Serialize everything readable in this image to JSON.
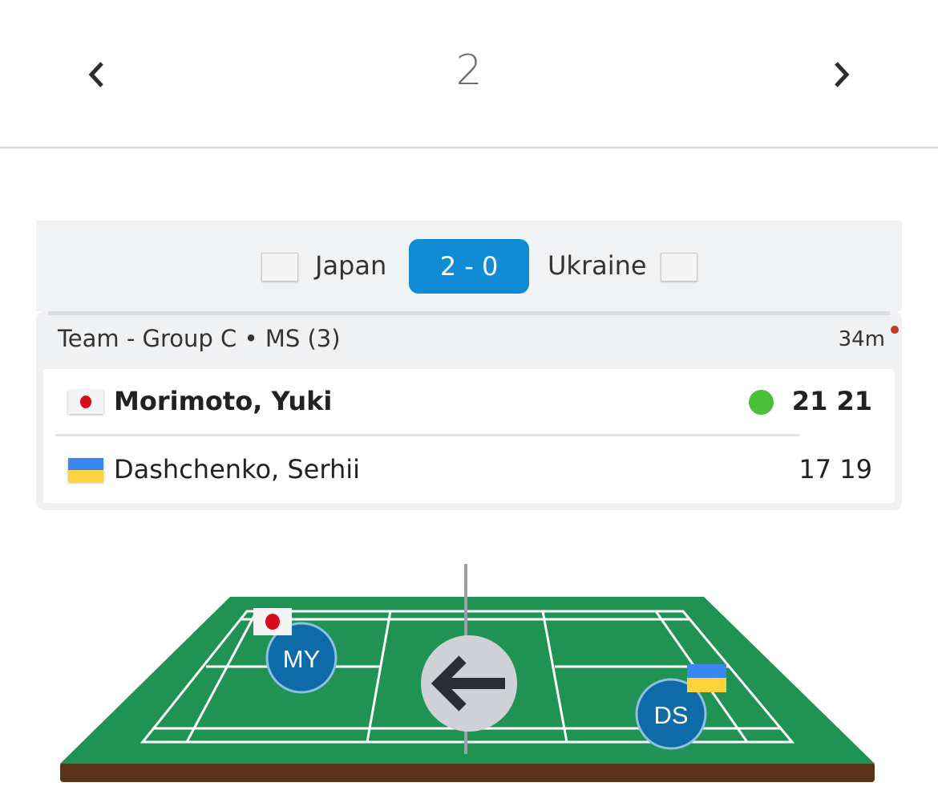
{
  "nav": {
    "prev_icon": "chevron-left-icon",
    "next_icon": "chevron-right-icon",
    "page": "2"
  },
  "match": {
    "team1": "Japan",
    "team2": "Ukraine",
    "team_score": "2 - 0",
    "meta": "Team - Group C • MS (3)",
    "duration": "34m",
    "status": "live",
    "players": [
      {
        "name": "Morimoto, Yuki",
        "country": "Japan",
        "flag": "flag-japan",
        "scores": "21 21",
        "winner": true,
        "initials": "MY"
      },
      {
        "name": "Dashchenko, Serhii",
        "country": "Ukraine",
        "flag": "flag-ukraine",
        "scores": "17 19",
        "winner": false,
        "initials": "DS"
      }
    ]
  },
  "court": {
    "serve_direction": "left",
    "arrow_icon": "arrow-left-icon"
  },
  "colors": {
    "accent": "#118cd4",
    "court": "#1f9254",
    "winner_dot": "#4cbf38",
    "live_dot": "#c0392b",
    "avatar": "#0f6aa8"
  }
}
